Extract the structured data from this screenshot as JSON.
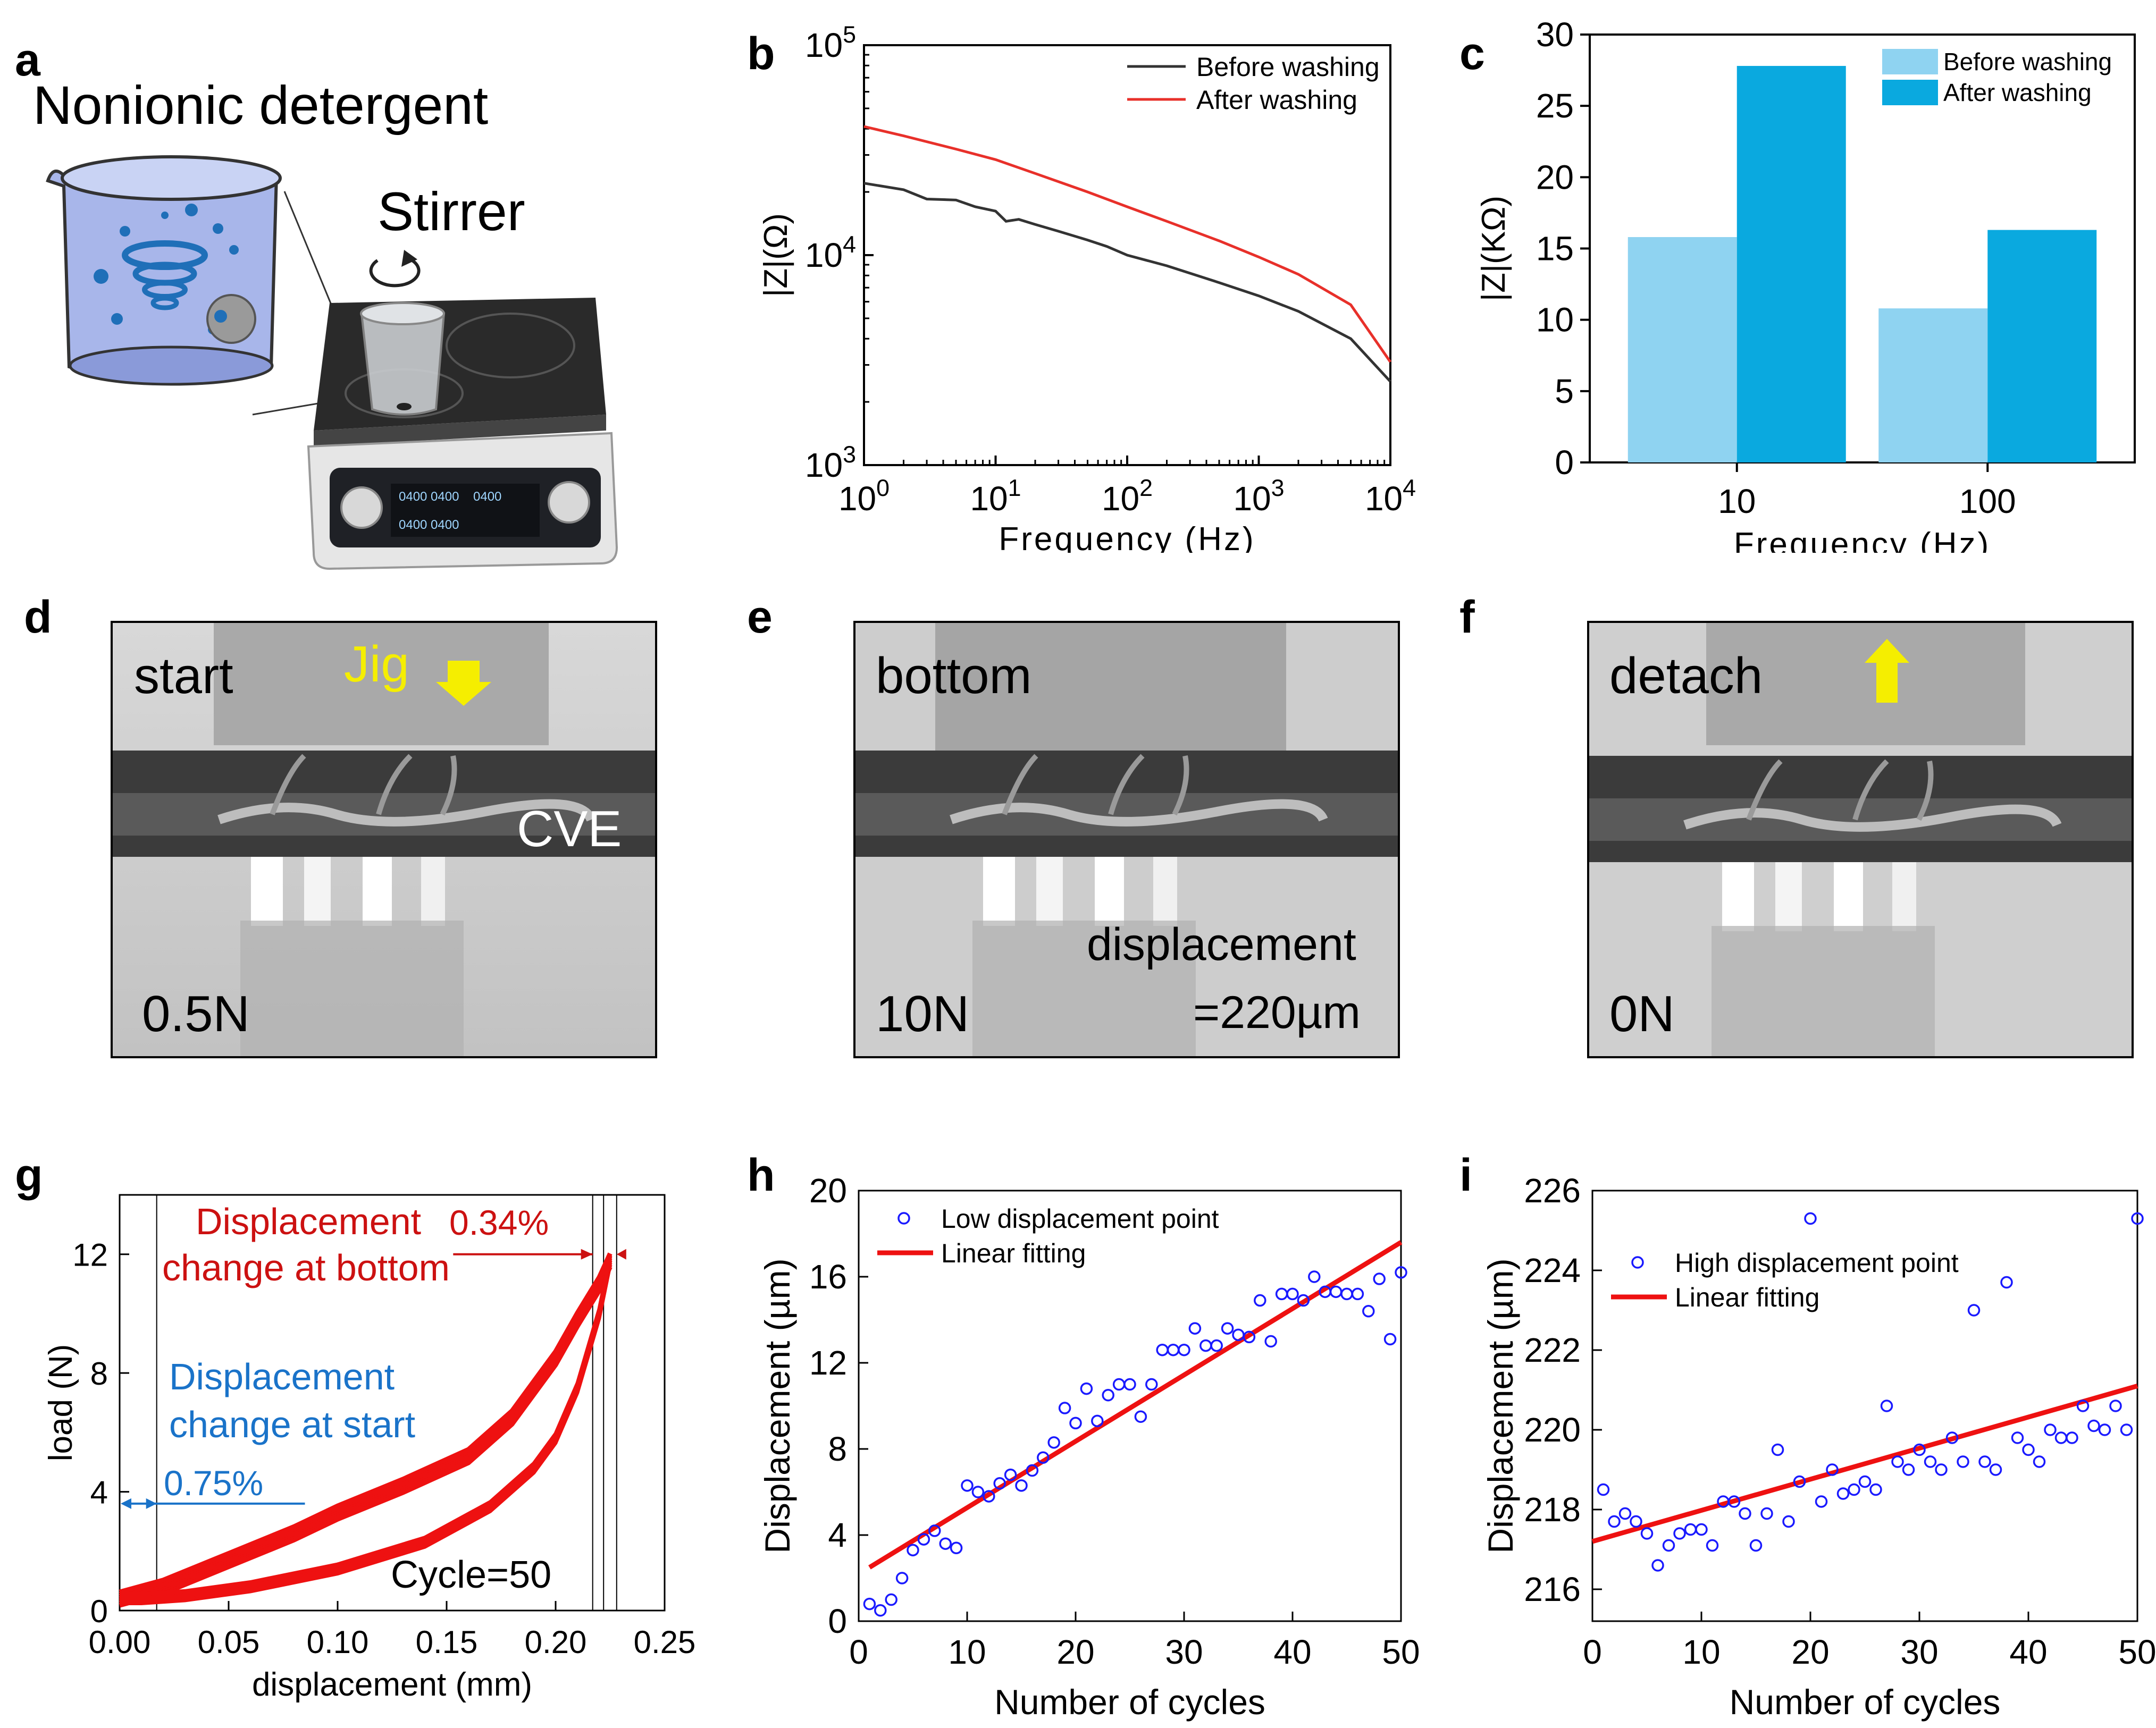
{
  "panels": {
    "a": {
      "letter": "a",
      "title": "Nonionic detergent",
      "stirrer": "Stirrer",
      "display_text": [
        "0400 0400",
        "0400",
        "0400 0400"
      ]
    },
    "b": {
      "letter": "b"
    },
    "c": {
      "letter": "c"
    },
    "d": {
      "letter": "d",
      "state": "start",
      "jig": "Jig",
      "cve": "CVE",
      "force": "0.5N"
    },
    "e": {
      "letter": "e",
      "state": "bottom",
      "disp_label": "displacement",
      "disp_value": "=220µm",
      "force": "10N"
    },
    "f": {
      "letter": "f",
      "state": "detach",
      "force": "0N"
    },
    "g": {
      "letter": "g",
      "ann_bottom_1": "Displacement",
      "ann_bottom_2": "change at bottom",
      "ann_bottom_pct": "0.34%",
      "ann_start_1": "Displacement",
      "ann_start_2": "change at start",
      "ann_start_pct": "0.75%",
      "cycle": "Cycle=50"
    },
    "h": {
      "letter": "h"
    },
    "i": {
      "letter": "i"
    }
  },
  "colors": {
    "before_line": "#333333",
    "after_line": "#e8302a",
    "bar_before": "#8fd3f1",
    "bar_after": "#0aa9df",
    "red": "#cc1111",
    "blue_text": "#1a73c9",
    "blue_marker": "#1a1aff",
    "jig_yellow": "#f5ee00"
  },
  "chart_data": [
    {
      "id": "b",
      "type": "line",
      "xscale": "log",
      "yscale": "log",
      "xlim": [
        1,
        10000
      ],
      "ylim": [
        1000,
        100000
      ],
      "xlabel": "Frequency (Hz)",
      "ylabel": "|Z|(Ω)",
      "x_ticks": [
        "10^0",
        "10^1",
        "10^2",
        "10^3",
        "10^4"
      ],
      "y_ticks": [
        "10^3",
        "10^4",
        "10^5"
      ],
      "legend": [
        "Before washing",
        "After washing"
      ],
      "series": [
        {
          "name": "Before washing",
          "x": [
            1,
            2,
            3,
            5,
            7,
            10,
            12,
            15,
            20,
            30,
            50,
            70,
            100,
            200,
            500,
            1000,
            2000,
            5000,
            10000
          ],
          "y": [
            22000,
            20500,
            18500,
            18300,
            17000,
            16200,
            14500,
            14800,
            14000,
            13000,
            11800,
            11000,
            10000,
            8900,
            7400,
            6400,
            5400,
            4000,
            2500
          ]
        },
        {
          "name": "After washing",
          "x": [
            1,
            2,
            5,
            10,
            20,
            50,
            100,
            200,
            500,
            1000,
            2000,
            5000,
            10000
          ],
          "y": [
            41000,
            37000,
            32000,
            28500,
            24500,
            20000,
            17000,
            14500,
            11700,
            9800,
            8100,
            5800,
            3100
          ]
        }
      ]
    },
    {
      "id": "c",
      "type": "bar",
      "categories": [
        "10",
        "100"
      ],
      "series": [
        {
          "name": "Before washing",
          "values": [
            15.8,
            10.8
          ]
        },
        {
          "name": "After washing",
          "values": [
            27.8,
            16.3
          ]
        }
      ],
      "ylim": [
        0,
        30
      ],
      "y_ticks": [
        "0",
        "5",
        "10",
        "15",
        "20",
        "25",
        "30"
      ],
      "xlabel": "Frequency (Hz)",
      "ylabel": "|Z|(KΩ)",
      "legend": [
        "Before washing",
        "After washing"
      ]
    },
    {
      "id": "g",
      "type": "line",
      "xlim": [
        0,
        0.25
      ],
      "ylim": [
        0,
        14
      ],
      "x_ticks": [
        "0.00",
        "0.05",
        "0.10",
        "0.15",
        "0.20",
        "0.25"
      ],
      "y_ticks": [
        "0",
        "4",
        "8",
        "12"
      ],
      "xlabel": "displacement (mm)",
      "ylabel": "load (N)",
      "loading": {
        "x": [
          0.0,
          0.02,
          0.05,
          0.08,
          0.1,
          0.13,
          0.16,
          0.18,
          0.2,
          0.21,
          0.22,
          0.225
        ],
        "y": [
          0.4,
          0.8,
          1.7,
          2.6,
          3.3,
          4.2,
          5.2,
          6.5,
          8.5,
          9.8,
          11.0,
          11.8
        ]
      },
      "unloading": {
        "x": [
          0.225,
          0.22,
          0.21,
          0.2,
          0.19,
          0.17,
          0.14,
          0.1,
          0.06,
          0.03,
          0.01,
          0.0
        ],
        "y": [
          11.8,
          10.0,
          7.5,
          5.8,
          4.8,
          3.5,
          2.3,
          1.4,
          0.8,
          0.5,
          0.4,
          0.4
        ]
      },
      "band_width_n": 0.45,
      "vlines": [
        0.017,
        0.217,
        0.222,
        0.228
      ]
    },
    {
      "id": "h",
      "type": "scatter",
      "xlim": [
        0,
        50
      ],
      "ylim": [
        0,
        20
      ],
      "x_ticks": [
        "0",
        "10",
        "20",
        "30",
        "40",
        "50"
      ],
      "y_ticks": [
        "0",
        "4",
        "8",
        "12",
        "16",
        "20"
      ],
      "xlabel": "Number of cycles",
      "ylabel": "Displacement (µm)",
      "legend": [
        "Low displacement point",
        "Linear fitting"
      ],
      "x": [
        1,
        2,
        3,
        4,
        5,
        6,
        7,
        8,
        9,
        10,
        11,
        12,
        13,
        14,
        15,
        16,
        17,
        18,
        19,
        20,
        21,
        22,
        23,
        24,
        25,
        26,
        27,
        28,
        29,
        30,
        31,
        32,
        33,
        34,
        35,
        36,
        37,
        38,
        39,
        40,
        41,
        42,
        43,
        44,
        45,
        46,
        47,
        48,
        49,
        50
      ],
      "y": [
        0.8,
        0.5,
        1.0,
        2.0,
        3.3,
        3.8,
        4.2,
        3.6,
        3.4,
        6.3,
        6.0,
        5.8,
        6.4,
        6.8,
        6.3,
        7.0,
        7.6,
        8.3,
        9.9,
        9.2,
        10.8,
        9.3,
        10.5,
        11.0,
        11.0,
        9.5,
        11.0,
        12.6,
        12.6,
        12.6,
        13.6,
        12.8,
        12.8,
        13.6,
        13.3,
        13.2,
        14.9,
        13.0,
        15.2,
        15.2,
        14.9,
        16.0,
        15.3,
        15.3,
        15.2,
        15.2,
        14.4,
        15.9,
        13.1,
        16.2
      ],
      "fit": {
        "x": [
          1,
          50
        ],
        "y": [
          2.5,
          17.6
        ]
      }
    },
    {
      "id": "i",
      "type": "scatter",
      "xlim": [
        0,
        50
      ],
      "ylim": [
        215.2,
        226
      ],
      "x_ticks": [
        "0",
        "10",
        "20",
        "30",
        "40",
        "50"
      ],
      "y_ticks": [
        "216",
        "218",
        "220",
        "222",
        "224",
        "226"
      ],
      "xlabel": "Number of cycles",
      "ylabel": "Displacement (µm)",
      "legend": [
        "High displacement point",
        "Linear fitting"
      ],
      "x": [
        1,
        2,
        3,
        4,
        5,
        6,
        7,
        8,
        9,
        10,
        11,
        12,
        13,
        14,
        15,
        16,
        17,
        18,
        19,
        20,
        21,
        22,
        23,
        24,
        25,
        26,
        27,
        28,
        29,
        30,
        31,
        32,
        33,
        34,
        35,
        36,
        37,
        38,
        39,
        40,
        41,
        42,
        43,
        44,
        45,
        46,
        47,
        48,
        49,
        50
      ],
      "y": [
        218.5,
        217.7,
        217.9,
        217.7,
        217.4,
        216.6,
        217.1,
        217.4,
        217.5,
        217.5,
        217.1,
        218.2,
        218.2,
        217.9,
        217.1,
        217.9,
        219.5,
        217.7,
        218.7,
        225.3,
        218.2,
        219.0,
        218.4,
        218.5,
        218.7,
        218.5,
        220.6,
        219.2,
        219.0,
        219.5,
        219.2,
        219.0,
        219.8,
        219.2,
        223.0,
        219.2,
        219.0,
        223.7,
        219.8,
        219.5,
        219.2,
        220.0,
        219.8,
        219.8,
        220.6,
        220.1,
        220.0,
        220.6,
        220.0,
        225.3
      ],
      "fit": {
        "x": [
          0,
          50
        ],
        "y": [
          217.2,
          221.1
        ]
      }
    }
  ]
}
